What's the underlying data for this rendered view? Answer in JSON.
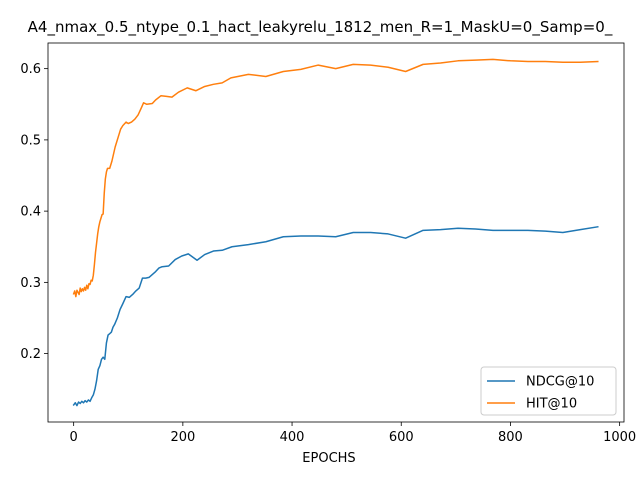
{
  "chart_data": {
    "type": "line",
    "title": "A4_nmax_0.5_ntype_0.1_hact_leakyrelu_1812_men_R=1_MaskU=0_Samp=0_",
    "xlabel": "EPOCHS",
    "ylabel": "",
    "xlim": [
      -47,
      1008
    ],
    "ylim": [
      0.104,
      0.636
    ],
    "xticks": [
      0,
      200,
      400,
      600,
      800,
      1000
    ],
    "yticks": [
      0.2,
      0.3,
      0.4,
      0.5,
      0.6
    ],
    "xtick_labels": [
      "0",
      "200",
      "400",
      "600",
      "800",
      "1000"
    ],
    "ytick_labels": [
      "0.2",
      "0.3",
      "0.4",
      "0.5",
      "0.6"
    ],
    "grid": false,
    "legend_position": "lower-right",
    "series": [
      {
        "name": "NDCG@10",
        "color": "#1f77b4",
        "points": [
          [
            0,
            0.128
          ],
          [
            3,
            0.131
          ],
          [
            6,
            0.127
          ],
          [
            9,
            0.132
          ],
          [
            12,
            0.13
          ],
          [
            15,
            0.133
          ],
          [
            18,
            0.131
          ],
          [
            21,
            0.134
          ],
          [
            24,
            0.132
          ],
          [
            27,
            0.135
          ],
          [
            30,
            0.133
          ],
          [
            33,
            0.138
          ],
          [
            36,
            0.142
          ],
          [
            39,
            0.15
          ],
          [
            42,
            0.162
          ],
          [
            45,
            0.178
          ],
          [
            48,
            0.183
          ],
          [
            51,
            0.192
          ],
          [
            54,
            0.195
          ],
          [
            57,
            0.192
          ],
          [
            60,
            0.215
          ],
          [
            63,
            0.226
          ],
          [
            66,
            0.228
          ],
          [
            69,
            0.23
          ],
          [
            72,
            0.237
          ],
          [
            75,
            0.241
          ],
          [
            80,
            0.25
          ],
          [
            85,
            0.262
          ],
          [
            90,
            0.27
          ],
          [
            96,
            0.28
          ],
          [
            102,
            0.279
          ],
          [
            108,
            0.283
          ],
          [
            114,
            0.288
          ],
          [
            120,
            0.292
          ],
          [
            126,
            0.306
          ],
          [
            132,
            0.306
          ],
          [
            138,
            0.307
          ],
          [
            144,
            0.311
          ],
          [
            150,
            0.315
          ],
          [
            156,
            0.32
          ],
          [
            162,
            0.322
          ],
          [
            174,
            0.323
          ],
          [
            186,
            0.332
          ],
          [
            198,
            0.337
          ],
          [
            210,
            0.34
          ],
          [
            226,
            0.331
          ],
          [
            240,
            0.339
          ],
          [
            256,
            0.344
          ],
          [
            272,
            0.345
          ],
          [
            290,
            0.35
          ],
          [
            320,
            0.353
          ],
          [
            352,
            0.357
          ],
          [
            384,
            0.364
          ],
          [
            416,
            0.365
          ],
          [
            448,
            0.365
          ],
          [
            480,
            0.364
          ],
          [
            512,
            0.37
          ],
          [
            544,
            0.37
          ],
          [
            576,
            0.368
          ],
          [
            608,
            0.362
          ],
          [
            640,
            0.373
          ],
          [
            672,
            0.374
          ],
          [
            704,
            0.376
          ],
          [
            736,
            0.375
          ],
          [
            768,
            0.373
          ],
          [
            800,
            0.373
          ],
          [
            832,
            0.373
          ],
          [
            864,
            0.372
          ],
          [
            896,
            0.37
          ],
          [
            928,
            0.374
          ],
          [
            960,
            0.378
          ]
        ]
      },
      {
        "name": "HIT@10",
        "color": "#ff7f0e",
        "points": [
          [
            0,
            0.284
          ],
          [
            2,
            0.288
          ],
          [
            4,
            0.28
          ],
          [
            6,
            0.289
          ],
          [
            8,
            0.286
          ],
          [
            10,
            0.283
          ],
          [
            12,
            0.292
          ],
          [
            14,
            0.287
          ],
          [
            16,
            0.291
          ],
          [
            18,
            0.288
          ],
          [
            20,
            0.293
          ],
          [
            22,
            0.289
          ],
          [
            24,
            0.296
          ],
          [
            26,
            0.291
          ],
          [
            28,
            0.298
          ],
          [
            30,
            0.297
          ],
          [
            32,
            0.303
          ],
          [
            34,
            0.302
          ],
          [
            36,
            0.31
          ],
          [
            38,
            0.325
          ],
          [
            40,
            0.342
          ],
          [
            42,
            0.355
          ],
          [
            44,
            0.368
          ],
          [
            46,
            0.378
          ],
          [
            48,
            0.385
          ],
          [
            50,
            0.39
          ],
          [
            52,
            0.395
          ],
          [
            54,
            0.396
          ],
          [
            56,
            0.425
          ],
          [
            58,
            0.445
          ],
          [
            60,
            0.455
          ],
          [
            62,
            0.46
          ],
          [
            66,
            0.46
          ],
          [
            70,
            0.47
          ],
          [
            76,
            0.49
          ],
          [
            82,
            0.505
          ],
          [
            86,
            0.515
          ],
          [
            90,
            0.52
          ],
          [
            96,
            0.525
          ],
          [
            100,
            0.523
          ],
          [
            106,
            0.525
          ],
          [
            112,
            0.529
          ],
          [
            118,
            0.535
          ],
          [
            124,
            0.545
          ],
          [
            128,
            0.552
          ],
          [
            134,
            0.55
          ],
          [
            144,
            0.551
          ],
          [
            150,
            0.556
          ],
          [
            160,
            0.562
          ],
          [
            170,
            0.561
          ],
          [
            180,
            0.56
          ],
          [
            192,
            0.567
          ],
          [
            208,
            0.573
          ],
          [
            224,
            0.569
          ],
          [
            240,
            0.575
          ],
          [
            256,
            0.578
          ],
          [
            272,
            0.58
          ],
          [
            288,
            0.587
          ],
          [
            320,
            0.592
          ],
          [
            352,
            0.589
          ],
          [
            384,
            0.596
          ],
          [
            416,
            0.599
          ],
          [
            448,
            0.605
          ],
          [
            480,
            0.6
          ],
          [
            512,
            0.606
          ],
          [
            544,
            0.605
          ],
          [
            576,
            0.602
          ],
          [
            608,
            0.596
          ],
          [
            640,
            0.606
          ],
          [
            672,
            0.608
          ],
          [
            704,
            0.611
          ],
          [
            736,
            0.612
          ],
          [
            768,
            0.613
          ],
          [
            800,
            0.611
          ],
          [
            832,
            0.61
          ],
          [
            864,
            0.61
          ],
          [
            896,
            0.609
          ],
          [
            928,
            0.609
          ],
          [
            960,
            0.61
          ]
        ]
      }
    ]
  }
}
